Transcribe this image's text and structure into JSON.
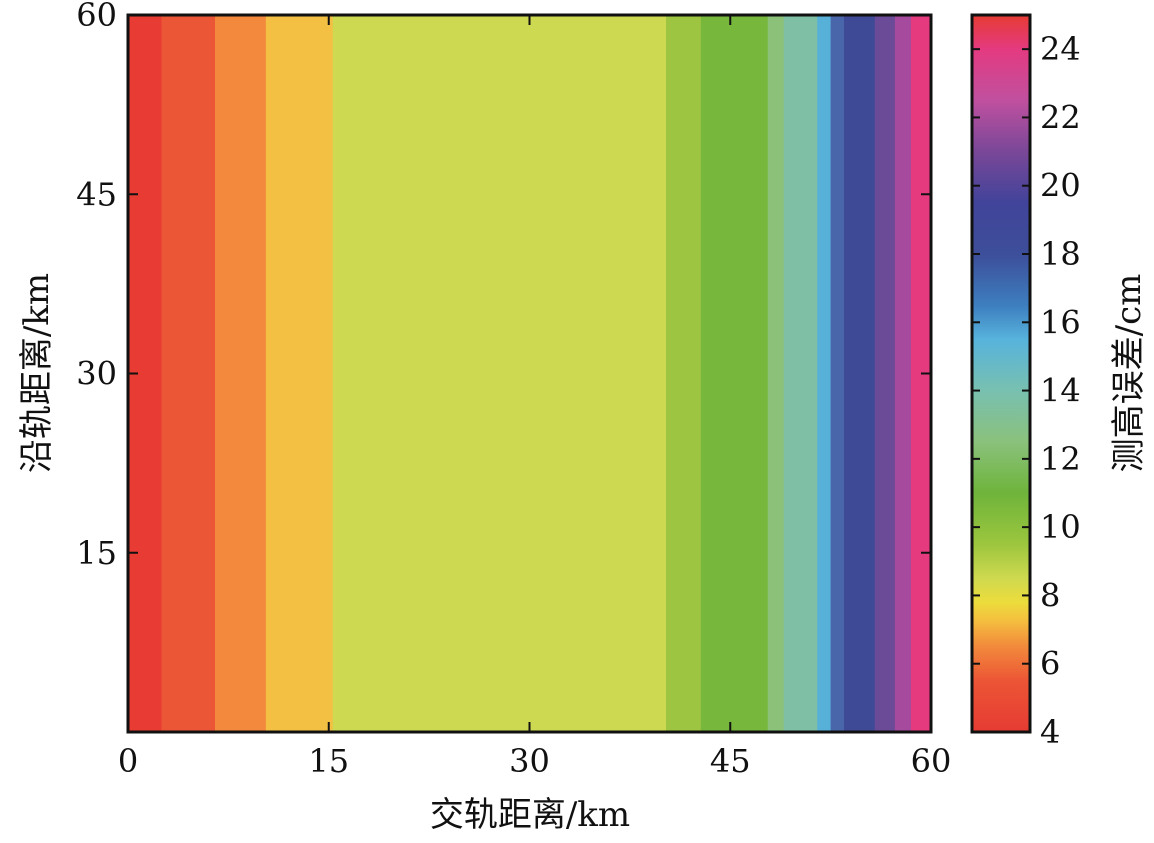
{
  "chart_data": {
    "type": "heatmap",
    "title": "",
    "xlabel": "交轨距离/km",
    "ylabel": "沿轨距离/km",
    "xlim": [
      0,
      60
    ],
    "ylim": [
      0,
      60
    ],
    "xticks": [
      0,
      15,
      30,
      45,
      60
    ],
    "yticks": [
      15,
      30,
      45,
      60
    ],
    "colorbar": {
      "label": "测高误差/cm",
      "range": [
        4,
        25
      ],
      "ticks": [
        4,
        6,
        8,
        10,
        12,
        14,
        16,
        18,
        20,
        22,
        24
      ],
      "colormap": [
        {
          "value": 4,
          "color": "#e63b33"
        },
        {
          "value": 5.5,
          "color": "#ec5535"
        },
        {
          "value": 6.5,
          "color": "#f28a3c"
        },
        {
          "value": 7.3,
          "color": "#f4c13e"
        },
        {
          "value": 7.8,
          "color": "#ecdc3c"
        },
        {
          "value": 8.5,
          "color": "#cfd94f"
        },
        {
          "value": 9.5,
          "color": "#9cc63e"
        },
        {
          "value": 11,
          "color": "#6fb43b"
        },
        {
          "value": 12.5,
          "color": "#8ac17c"
        },
        {
          "value": 14,
          "color": "#78c0b0"
        },
        {
          "value": 15.5,
          "color": "#57b3dc"
        },
        {
          "value": 16.5,
          "color": "#3d7ebf"
        },
        {
          "value": 18,
          "color": "#3d4e9a"
        },
        {
          "value": 19.5,
          "color": "#41449a"
        },
        {
          "value": 21,
          "color": "#7a4798"
        },
        {
          "value": 22.5,
          "color": "#c0509f"
        },
        {
          "value": 24,
          "color": "#e43a80"
        },
        {
          "value": 25,
          "color": "#e63b33"
        }
      ]
    },
    "bands": [
      {
        "x0": 0,
        "x1": 2.5,
        "color": "#e73b33"
      },
      {
        "x0": 2.5,
        "x1": 6.5,
        "color": "#eb5736"
      },
      {
        "x0": 6.5,
        "x1": 10.3,
        "color": "#f2893c"
      },
      {
        "x0": 10.3,
        "x1": 15.3,
        "color": "#f4c044"
      },
      {
        "x0": 15.3,
        "x1": 40.2,
        "color": "#cdd951"
      },
      {
        "x0": 40.2,
        "x1": 42.8,
        "color": "#9dc541"
      },
      {
        "x0": 42.8,
        "x1": 47.8,
        "color": "#77b83c"
      },
      {
        "x0": 47.8,
        "x1": 49.0,
        "color": "#8cc17a"
      },
      {
        "x0": 49.0,
        "x1": 51.5,
        "color": "#7ebfa6"
      },
      {
        "x0": 51.5,
        "x1": 52.5,
        "color": "#57b0d8"
      },
      {
        "x0": 52.5,
        "x1": 53.5,
        "color": "#4a66aa"
      },
      {
        "x0": 53.5,
        "x1": 55.8,
        "color": "#3f4a97"
      },
      {
        "x0": 55.8,
        "x1": 57.3,
        "color": "#6b4a98"
      },
      {
        "x0": 57.3,
        "x1": 58.5,
        "color": "#a54a9c"
      },
      {
        "x0": 58.5,
        "x1": 60,
        "color": "#e53a7e"
      }
    ],
    "grid": false
  }
}
